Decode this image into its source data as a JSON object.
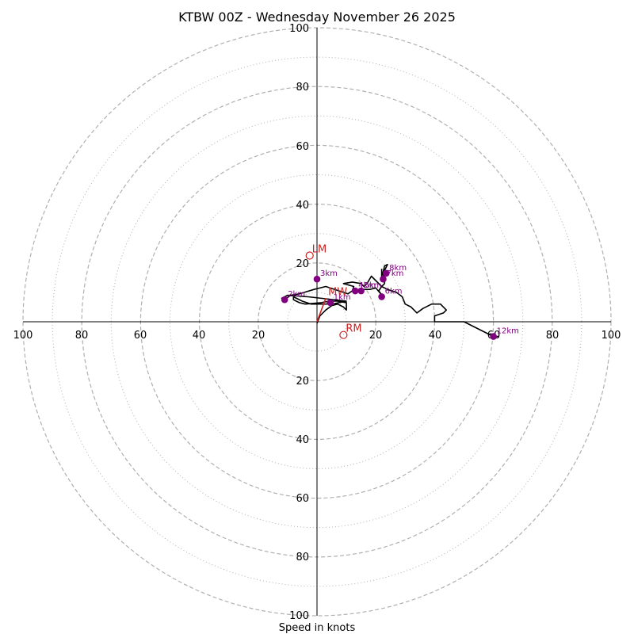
{
  "chart_data": {
    "type": "hodograph",
    "title": "KTBW 00Z - Wednesday November 26 2025",
    "xlabel": "Speed in knots",
    "range": [
      -100,
      100
    ],
    "major_rings": [
      20,
      40,
      60,
      80,
      100
    ],
    "minor_rings": [
      10,
      30,
      50,
      70,
      90
    ],
    "tick_labels": {
      "x": [
        "100",
        "80",
        "60",
        "40",
        "20",
        "20",
        "40",
        "60",
        "80",
        "100"
      ],
      "y": [
        "100",
        "80",
        "60",
        "40",
        "20",
        "20",
        "40",
        "60",
        "80",
        "100"
      ]
    },
    "trace": [
      [
        0,
        -0.5
      ],
      [
        1,
        2
      ],
      [
        3,
        4
      ],
      [
        5,
        5.5
      ],
      [
        7,
        6
      ],
      [
        9,
        5
      ],
      [
        10,
        4
      ],
      [
        10,
        6.5
      ],
      [
        7,
        7
      ],
      [
        4,
        7
      ],
      [
        1.5,
        6.5
      ],
      [
        -4,
        6
      ],
      [
        -6,
        6.5
      ],
      [
        -8,
        7.5
      ],
      [
        -8,
        8.5
      ],
      [
        -5,
        7
      ],
      [
        -2,
        6
      ],
      [
        3,
        6
      ],
      [
        6,
        6.2
      ],
      [
        10,
        7
      ],
      [
        -3,
        8.5
      ],
      [
        -10,
        9
      ],
      [
        -12,
        8
      ],
      [
        -11,
        7.5
      ],
      [
        -9,
        9
      ],
      [
        -6,
        9.5
      ],
      [
        -1,
        11
      ],
      [
        3,
        12
      ],
      [
        6,
        11
      ],
      [
        9,
        10
      ],
      [
        10.5,
        9.5
      ],
      [
        12,
        10.5
      ],
      [
        12.5,
        12
      ],
      [
        9,
        13
      ],
      [
        12,
        13.5
      ],
      [
        15,
        13
      ],
      [
        16,
        12
      ],
      [
        17,
        13
      ],
      [
        18.5,
        15.5
      ],
      [
        22,
        12
      ],
      [
        24,
        11
      ],
      [
        27,
        10
      ],
      [
        29,
        8.5
      ],
      [
        30,
        6
      ],
      [
        32,
        5
      ],
      [
        34,
        3
      ],
      [
        36,
        4.5
      ],
      [
        39,
        6
      ],
      [
        42,
        6
      ],
      [
        43,
        5
      ],
      [
        44,
        4
      ],
      [
        43,
        3
      ],
      [
        40,
        2
      ],
      [
        40,
        0
      ],
      [
        43,
        0
      ],
      [
        48,
        0
      ],
      [
        50,
        0
      ],
      [
        60,
        -5
      ],
      [
        62,
        -5
      ]
    ],
    "inner_trace": [
      [
        15,
        11
      ],
      [
        18,
        11
      ],
      [
        20,
        11.5
      ],
      [
        22.5,
        8.5
      ],
      [
        21,
        10.5
      ],
      [
        22,
        12
      ],
      [
        23,
        13
      ],
      [
        23,
        15
      ],
      [
        22.5,
        16
      ],
      [
        23,
        17.5
      ],
      [
        23.5,
        18.5
      ],
      [
        24,
        19.5
      ],
      [
        23,
        19
      ],
      [
        22.5,
        17
      ],
      [
        22,
        15.5
      ],
      [
        22,
        18
      ]
    ],
    "height_markers": [
      {
        "label": "1km",
        "u": 4.5,
        "v": 6.5
      },
      {
        "label": "2km",
        "u": -11,
        "v": 7.5
      },
      {
        "label": "3km",
        "u": 0,
        "v": 14.5
      },
      {
        "label": "4km",
        "u": 13,
        "v": 10.5
      },
      {
        "label": "5km",
        "u": 15,
        "v": 10.5
      },
      {
        "label": "6km",
        "u": 22,
        "v": 8.5
      },
      {
        "label": "7km",
        "u": 22.5,
        "v": 14.5
      },
      {
        "label": "8km",
        "u": 23.5,
        "v": 16.5
      },
      {
        "label": "12km",
        "u": 60,
        "v": -5
      }
    ],
    "motion_points": [
      {
        "label": "LM",
        "u": -2.5,
        "v": 22.5
      },
      {
        "label": "MW",
        "u": 3,
        "v": 8
      },
      {
        "label": "RM",
        "u": 9,
        "v": -4.5
      }
    ],
    "colors": {
      "trace": "#000000",
      "height_marker": "#800080",
      "motion": "#cc2222",
      "ring": "#b0b0b0",
      "axis": "#000000"
    }
  }
}
